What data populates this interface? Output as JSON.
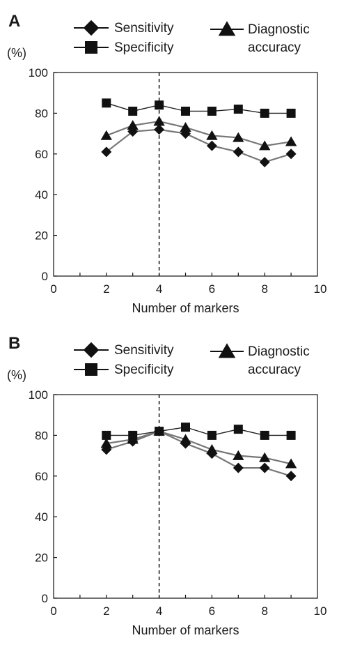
{
  "chart_data": [
    {
      "type": "line",
      "panel_label": "A",
      "y_unit": "(%)",
      "xlabel": "Number of  markers",
      "ylabel": "",
      "xlim": [
        0,
        10
      ],
      "ylim": [
        0,
        100
      ],
      "x_ticks": [
        0,
        2,
        4,
        6,
        8,
        10
      ],
      "y_ticks": [
        0,
        20,
        40,
        60,
        80,
        100
      ],
      "vline_x": 4,
      "legend_position": "top",
      "grid": false,
      "x": [
        2,
        3,
        4,
        5,
        6,
        7,
        8,
        9
      ],
      "series": [
        {
          "name": "Sensitivity",
          "marker": "diamond",
          "values": [
            61,
            71,
            72,
            70,
            64,
            61,
            56,
            60
          ]
        },
        {
          "name": "Specificity",
          "marker": "square",
          "values": [
            85,
            81,
            84,
            81,
            81,
            82,
            80,
            80
          ]
        },
        {
          "name": "Diagnostic\naccuracy",
          "marker": "triangle",
          "values": [
            69,
            74,
            76,
            73,
            69,
            68,
            64,
            66
          ]
        }
      ]
    },
    {
      "type": "line",
      "panel_label": "B",
      "y_unit": "(%)",
      "xlabel": "Number of  markers",
      "ylabel": "",
      "xlim": [
        0,
        10
      ],
      "ylim": [
        0,
        100
      ],
      "x_ticks": [
        0,
        2,
        4,
        6,
        8,
        10
      ],
      "y_ticks": [
        0,
        20,
        40,
        60,
        80,
        100
      ],
      "vline_x": 4,
      "legend_position": "top",
      "grid": false,
      "x": [
        2,
        3,
        4,
        5,
        6,
        7,
        8,
        9
      ],
      "series": [
        {
          "name": "Sensitivity",
          "marker": "diamond",
          "values": [
            73,
            77,
            82,
            76,
            71,
            64,
            64,
            60
          ]
        },
        {
          "name": "Specificity",
          "marker": "square",
          "values": [
            80,
            80,
            82,
            84,
            80,
            83,
            80,
            80
          ]
        },
        {
          "name": "Diagnostic\naccuracy",
          "marker": "triangle",
          "values": [
            76,
            78,
            82,
            78,
            73,
            70,
            69,
            66
          ]
        }
      ]
    }
  ],
  "colors": {
    "marker": "#111111",
    "series_line": "#777777",
    "specificity_line": "#222222",
    "axis": "#111111"
  }
}
